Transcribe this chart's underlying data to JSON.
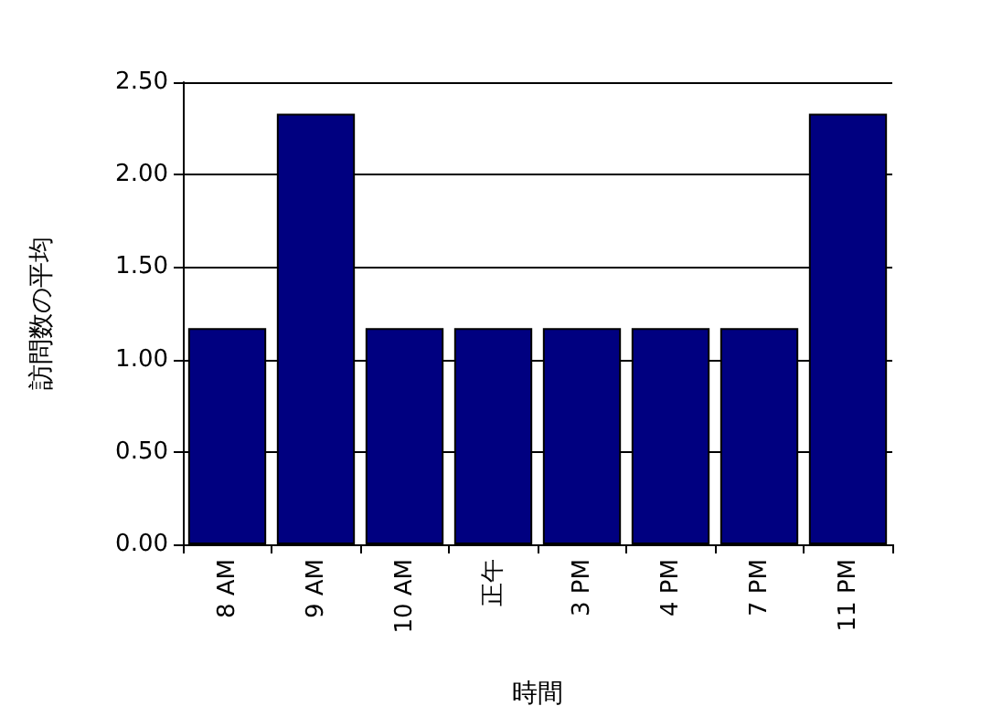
{
  "chart_data": {
    "type": "bar",
    "xlabel": "時間",
    "ylabel": "訪問数の平均",
    "categories": [
      "8 AM",
      "9 AM",
      "10 AM",
      "正午",
      "3 PM",
      "4 PM",
      "7 PM",
      "11 PM"
    ],
    "values": [
      1.17,
      2.33,
      1.17,
      1.17,
      1.17,
      1.17,
      1.17,
      2.33
    ],
    "color": "#000080",
    "ylim": [
      0,
      2.5
    ],
    "yticks": [
      {
        "value": 0,
        "label": "0.00"
      },
      {
        "value": 0.5,
        "label": "0.50"
      },
      {
        "value": 1,
        "label": "1.00"
      },
      {
        "value": 1.5,
        "label": "1.50"
      },
      {
        "value": 2,
        "label": "2.00"
      },
      {
        "value": 2.5,
        "label": "2.50"
      }
    ],
    "grid": "y"
  }
}
